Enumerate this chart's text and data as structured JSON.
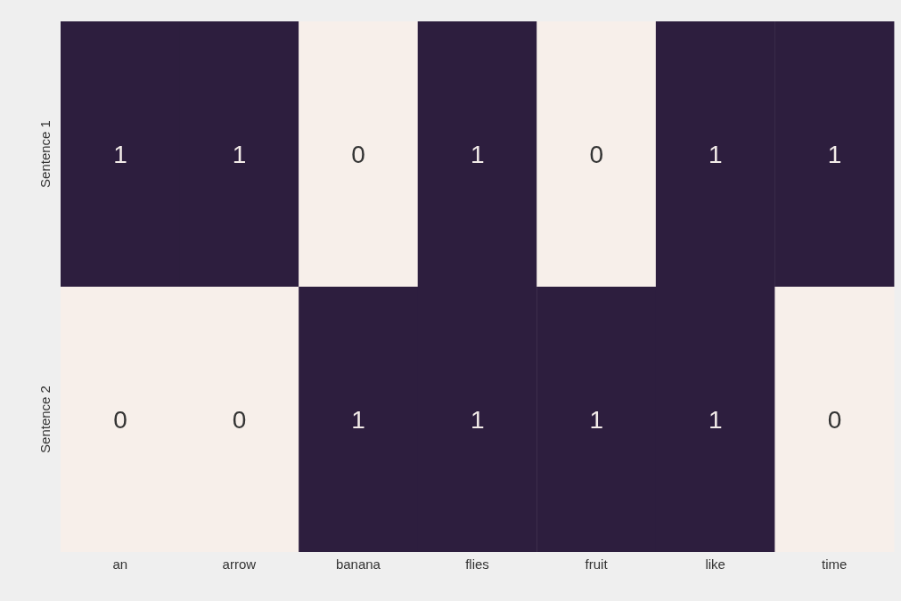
{
  "chart_data": {
    "type": "heatmap",
    "categories": [
      "an",
      "arrow",
      "banana",
      "flies",
      "fruit",
      "like",
      "time"
    ],
    "y_categories": [
      "Sentence 1",
      "Sentence 2"
    ],
    "cells": [
      [
        1,
        1,
        0,
        1,
        0,
        1,
        1
      ],
      [
        0,
        0,
        1,
        1,
        1,
        1,
        0
      ]
    ],
    "data_labels": true
  }
}
